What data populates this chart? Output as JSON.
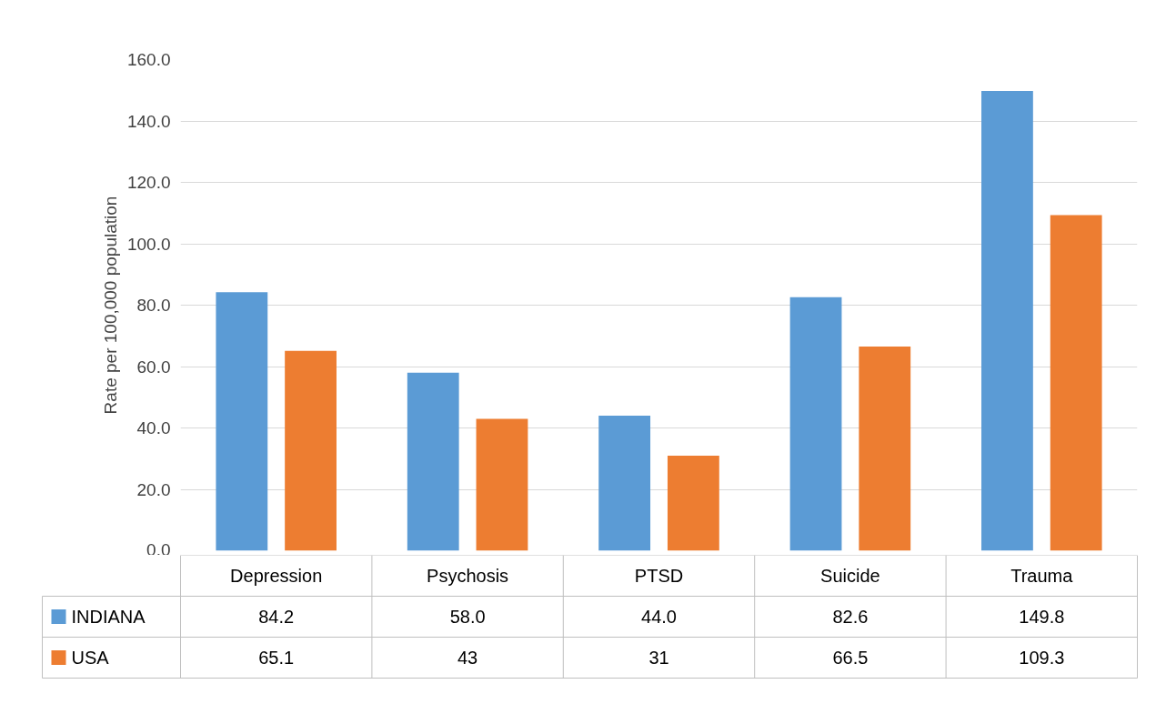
{
  "chart_data": {
    "type": "bar",
    "ylabel": "Rate per 100,000 population",
    "categories": [
      "Depression",
      "Psychosis",
      "PTSD",
      "Suicide",
      "Trauma"
    ],
    "series": [
      {
        "name": "INDIANA",
        "color": "#5b9bd5",
        "values": [
          84.2,
          58.0,
          44.0,
          82.6,
          149.8
        ],
        "value_labels": [
          "84.2",
          "58.0",
          "44.0",
          "82.6",
          "149.8"
        ]
      },
      {
        "name": "USA",
        "color": "#ed7d31",
        "values": [
          65.1,
          43,
          31,
          66.5,
          109.3
        ],
        "value_labels": [
          "65.1",
          "43",
          "31",
          "66.5",
          "109.3"
        ]
      }
    ],
    "ylim": [
      0,
      160
    ],
    "yticks": [
      {
        "value": 0,
        "label": "0.0"
      },
      {
        "value": 20,
        "label": "20.0"
      },
      {
        "value": 40,
        "label": "40.0"
      },
      {
        "value": 60,
        "label": "60.0"
      },
      {
        "value": 80,
        "label": "80.0"
      },
      {
        "value": 100,
        "label": "100.0"
      },
      {
        "value": 120,
        "label": "120.0"
      },
      {
        "value": 140,
        "label": "140.0"
      },
      {
        "value": 160,
        "label": "160.0"
      }
    ],
    "grid": "y",
    "legend": "bottom"
  }
}
